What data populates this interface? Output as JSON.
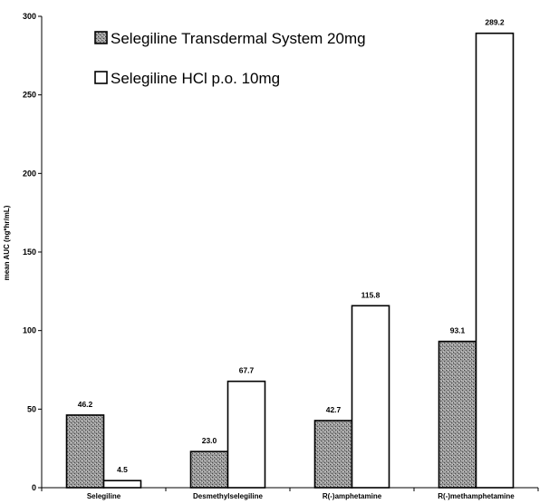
{
  "chart_data": {
    "type": "bar",
    "title": "",
    "xlabel": "",
    "ylabel": "mean AUC (ng*hr/mL)",
    "ylim": [
      0,
      300
    ],
    "yticks": [
      0,
      50,
      100,
      150,
      200,
      250,
      300
    ],
    "grid": false,
    "legend_position": "top",
    "categories": [
      "Selegiline",
      "Desmethylselegiline",
      "R(-)amphetamine",
      "R(-)methamphetamine"
    ],
    "series": [
      {
        "name": "Selegiline Transdermal System 20mg",
        "values": [
          46.2,
          23.0,
          42.7,
          93.1
        ],
        "labels": [
          "46.2",
          "23.0",
          "42.7",
          "93.1"
        ],
        "fill": "#8c8c8c",
        "pattern": "stippled"
      },
      {
        "name": "Selegiline HCl p.o. 10mg",
        "values": [
          4.5,
          67.7,
          115.8,
          289.2
        ],
        "labels": [
          "4.5",
          "67.7",
          "115.8",
          "289.2"
        ],
        "fill": "#ffffff",
        "pattern": "none"
      }
    ]
  }
}
